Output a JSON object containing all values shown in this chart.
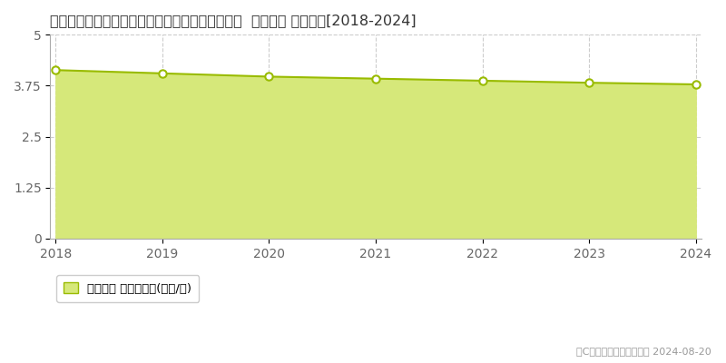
{
  "title": "栃木県河内郡上三川町大字梁字京塚４０７番２外  地価公示 地価推移[2018-2024]",
  "years": [
    2018,
    2019,
    2020,
    2021,
    2022,
    2023,
    2024
  ],
  "values": [
    4.13,
    4.05,
    3.97,
    3.92,
    3.87,
    3.82,
    3.78
  ],
  "ylim": [
    0,
    5
  ],
  "yticks": [
    0,
    1.25,
    2.5,
    3.75,
    5
  ],
  "ytick_labels": [
    "0",
    "1.25",
    "2.5",
    "3.75",
    "5"
  ],
  "line_color": "#99bb00",
  "fill_color": "#d6e87a",
  "marker_facecolor": "#ffffff",
  "marker_edgecolor": "#99bb00",
  "grid_color": "#cccccc",
  "background_color": "#ffffff",
  "legend_label": "地価公示 平均坪単価(万円/坪)",
  "copyright_text": "（C）土地価格ドットコム 2024-08-20",
  "title_fontsize": 11.5,
  "axis_fontsize": 10,
  "legend_fontsize": 9.5,
  "copyright_fontsize": 8
}
